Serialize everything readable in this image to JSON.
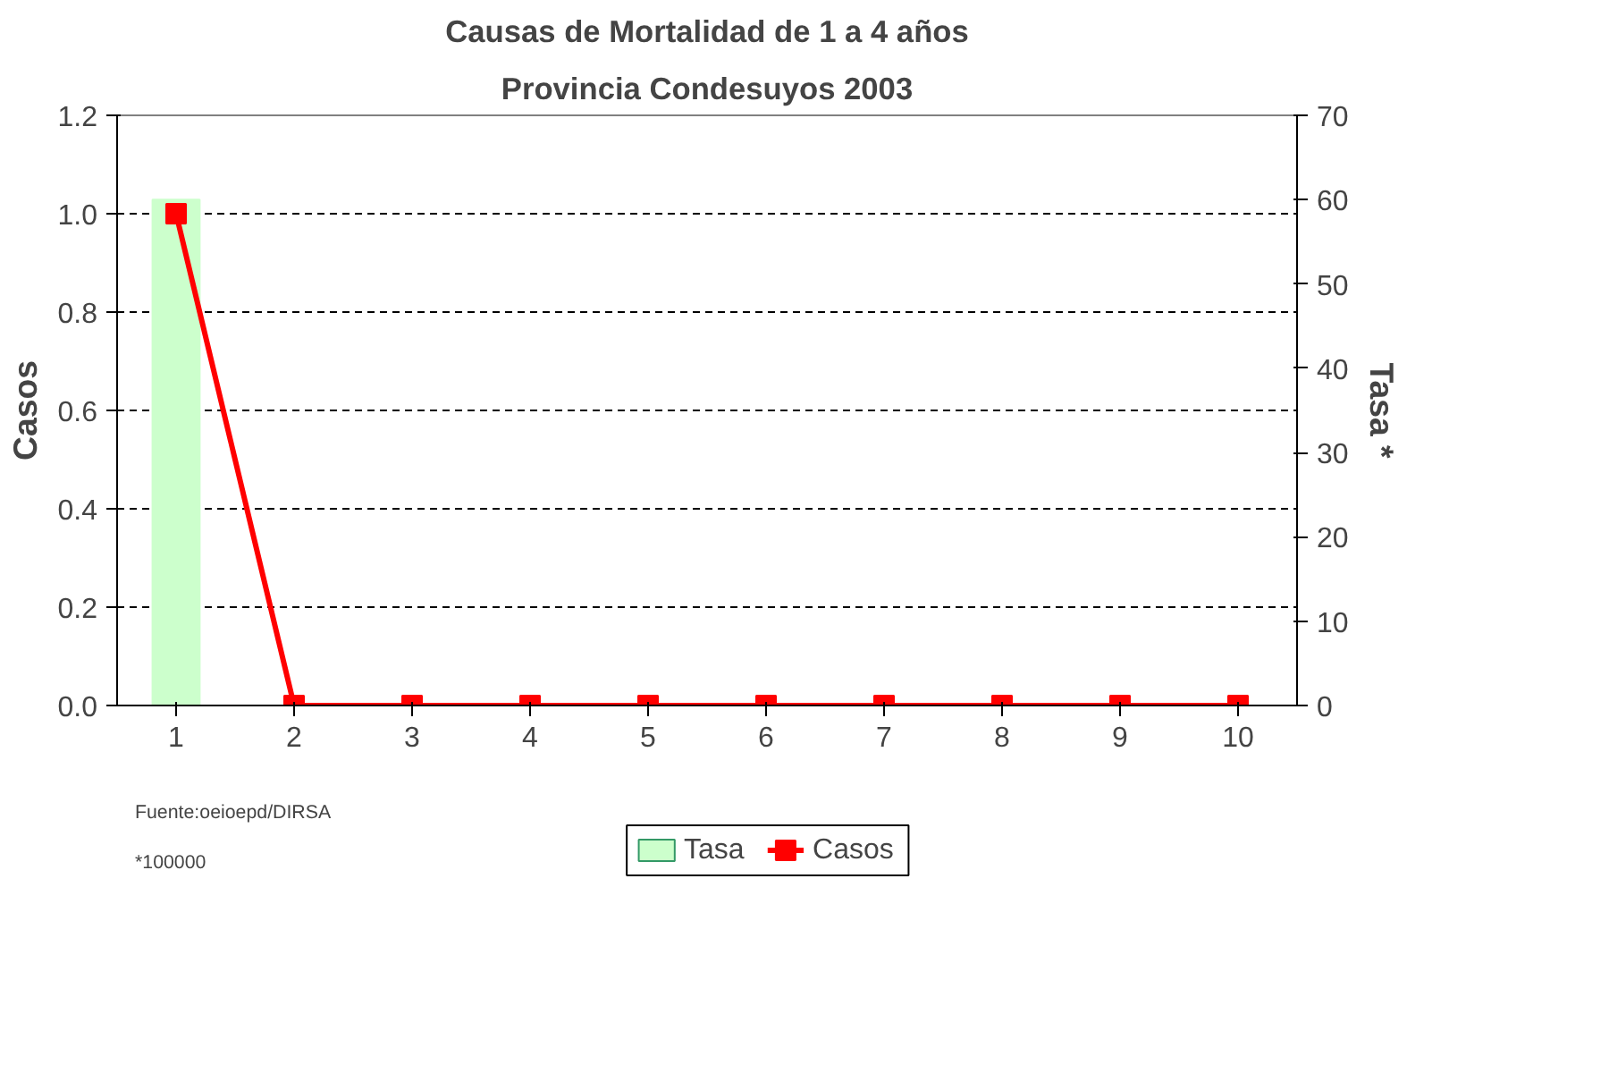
{
  "chart_data": {
    "type": "line",
    "title": "Causas de Mortalidad de 1 a 4 años",
    "subtitle": "Provincia Condesuyos 2003",
    "ylabel": "Casos",
    "y2label": "Tasa *",
    "categories": [
      "1",
      "2",
      "3",
      "4",
      "5",
      "6",
      "7",
      "8",
      "9",
      "10"
    ],
    "series": [
      {
        "name": "Tasa",
        "type": "bar",
        "axis": "y2",
        "color": "#ccffcc",
        "values": [
          60,
          0,
          0,
          0,
          0,
          0,
          0,
          0,
          0,
          0
        ]
      },
      {
        "name": "Casos",
        "color": "#ff0000",
        "values": [
          1,
          0,
          0,
          0,
          0,
          0,
          0,
          0,
          0,
          0
        ]
      }
    ],
    "ylim": [
      0,
      1.2
    ],
    "yticks": [
      {
        "value": 0,
        "label": "0.0"
      },
      {
        "value": 0.2,
        "label": "0.2"
      },
      {
        "value": 0.4,
        "label": "0.4"
      },
      {
        "value": 0.6,
        "label": "0.6"
      },
      {
        "value": 0.8,
        "label": "0.8"
      },
      {
        "value": 1.0,
        "label": "1.0"
      },
      {
        "value": 1.2,
        "label": "1.2"
      }
    ],
    "y2lim": [
      0,
      70
    ],
    "y2ticks": [
      0,
      10,
      20,
      30,
      40,
      50,
      60,
      70
    ],
    "grid": "y",
    "legend": "bottom",
    "marker": "square",
    "line_style": "solid",
    "annotations": [
      "Fuente:oeioepd/DIRSA",
      "*100000"
    ]
  }
}
